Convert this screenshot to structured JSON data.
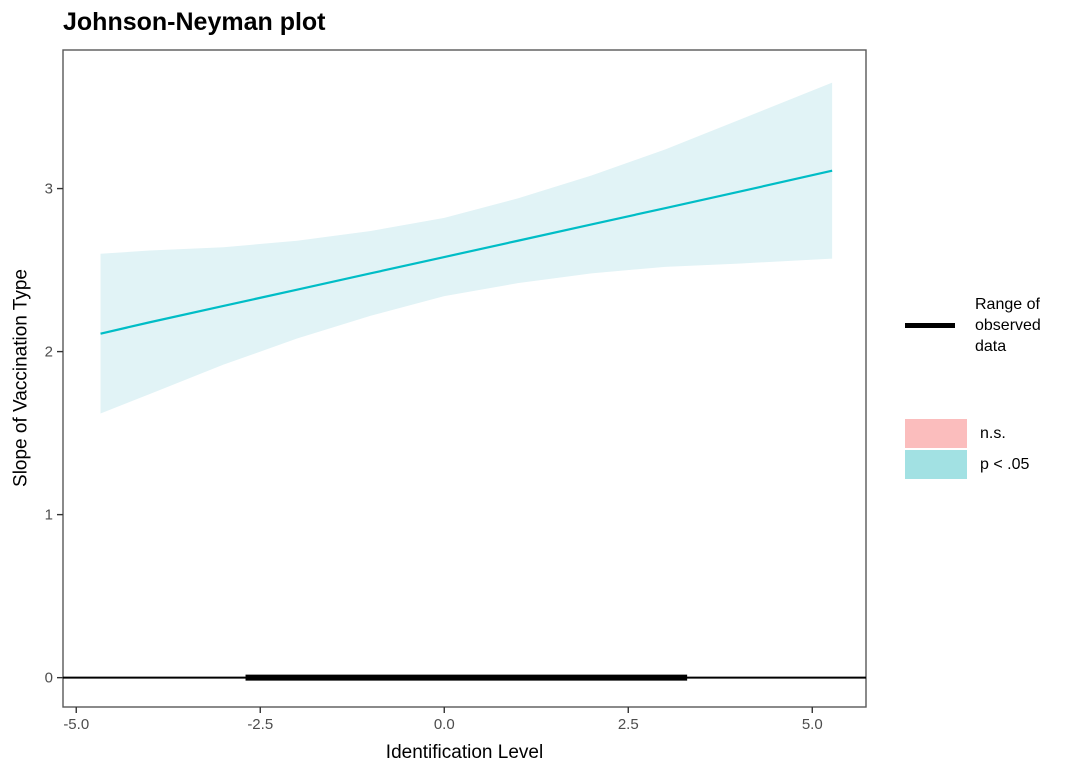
{
  "chart_data": {
    "type": "line",
    "title": "Johnson-Neyman plot",
    "xlabel": "Identification Level",
    "ylabel": "Slope of Vaccination Type",
    "xlim": [
      -5.18,
      5.73
    ],
    "ylim": [
      -0.18,
      3.85
    ],
    "grid": false,
    "legend_position": "right",
    "x_ticks": {
      "values": [
        -5.0,
        -2.5,
        0.0,
        2.5,
        5.0
      ],
      "labels": [
        "-5.0",
        "-2.5",
        "0.0",
        "2.5",
        "5.0"
      ]
    },
    "y_ticks": {
      "values": [
        0,
        1,
        2,
        3
      ],
      "labels": [
        "0",
        "1",
        "2",
        "3"
      ]
    },
    "series": [
      {
        "name": "slope of vaccination type (p < .05)",
        "x": [
          -4.67,
          -4,
          -3,
          -2,
          -1,
          0,
          1,
          2,
          3,
          4,
          5.27
        ],
        "y": [
          2.11,
          2.18,
          2.28,
          2.38,
          2.48,
          2.58,
          2.68,
          2.78,
          2.88,
          2.98,
          3.11
        ]
      }
    ],
    "ci_band": {
      "x": [
        -4.67,
        -4,
        -3,
        -2,
        -1,
        0,
        1,
        2,
        3,
        4,
        5.27
      ],
      "ymin": [
        1.62,
        1.74,
        1.92,
        2.08,
        2.22,
        2.34,
        2.42,
        2.48,
        2.52,
        2.54,
        2.57
      ],
      "ymax": [
        2.6,
        2.62,
        2.64,
        2.68,
        2.74,
        2.82,
        2.94,
        3.08,
        3.24,
        3.42,
        3.65
      ]
    },
    "zero_line_y": 0,
    "observed_range": {
      "y": 0,
      "from": -2.7,
      "to": 3.3
    },
    "legend": [
      {
        "key": "line",
        "label": "Range of observed data"
      },
      {
        "key": "ns",
        "label": "n.s."
      },
      {
        "key": "sig",
        "label": "p < .05"
      }
    ],
    "colors": {
      "trend_line": "#00BDC6",
      "ci_band": "#E1F3F6",
      "ns_fill": "#FBBDBD",
      "sig_fill": "#A2E1E3",
      "observed_line": "#000000",
      "zero_line": "#000000",
      "axis_text": "#4D4D4D",
      "tick_mark": "#333333",
      "panel_border": "#595959"
    }
  }
}
